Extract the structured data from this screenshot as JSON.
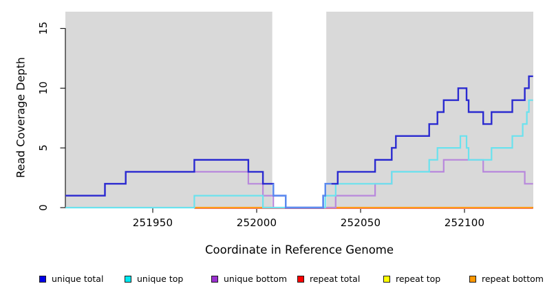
{
  "chart_data": {
    "type": "line",
    "subtype": "step-coverage-plot",
    "title": "",
    "x_axis": {
      "label": "Coordinate in Reference Genome",
      "ticks": [
        251950,
        252000,
        252050,
        252100
      ],
      "tick_labels": [
        "251950",
        "252000",
        "252050",
        "252100"
      ],
      "range": [
        251908,
        252133
      ],
      "grid": false
    },
    "y_axis": {
      "label": "Read Coverage Depth",
      "ticks": [
        0,
        5,
        10,
        15
      ],
      "tick_labels": [
        "0",
        "5",
        "10",
        "15"
      ],
      "range": [
        0,
        16.4
      ],
      "grid": false
    },
    "plot_background": "#d9d9d9",
    "page_background": "#ffffff",
    "gap_region": {
      "from": 252007.5,
      "to": 252033.5,
      "color": "#ffffff"
    },
    "series": [
      {
        "name": "unique total",
        "color": "#0000e8",
        "points": [
          [
            251908,
            1
          ],
          [
            251927,
            2
          ],
          [
            251937,
            3
          ],
          [
            251970,
            4
          ],
          [
            251996,
            3
          ],
          [
            252003,
            2
          ],
          [
            252008,
            1
          ],
          [
            252014,
            0
          ],
          [
            252032,
            1
          ],
          [
            252033,
            2
          ],
          [
            252039,
            3
          ],
          [
            252057,
            4
          ],
          [
            252065,
            5
          ],
          [
            252067,
            6
          ],
          [
            252083,
            7
          ],
          [
            252087,
            8
          ],
          [
            252090,
            9
          ],
          [
            252097,
            10
          ],
          [
            252101,
            9
          ],
          [
            252102,
            8
          ],
          [
            252109,
            7
          ],
          [
            252113,
            8
          ],
          [
            252123,
            9
          ],
          [
            252129,
            10
          ],
          [
            252131,
            11
          ]
        ],
        "end": 252133
      },
      {
        "name": "unique top",
        "color": "#00e8f0",
        "points": [
          [
            251908,
            0
          ],
          [
            251970,
            1
          ],
          [
            252003,
            0
          ],
          [
            252033,
            1
          ],
          [
            252038,
            2
          ],
          [
            252065,
            3
          ],
          [
            252083,
            4
          ],
          [
            252087,
            5
          ],
          [
            252098,
            6
          ],
          [
            252101,
            5
          ],
          [
            252102,
            4
          ],
          [
            252113,
            5
          ],
          [
            252123,
            6
          ],
          [
            252128,
            7
          ],
          [
            252130,
            8
          ],
          [
            252131,
            9
          ]
        ],
        "end": 252133
      },
      {
        "name": "unique bottom",
        "color": "#9a30cf",
        "points": [
          [
            251908,
            1
          ],
          [
            251927,
            2
          ],
          [
            251937,
            3
          ],
          [
            251996,
            2
          ],
          [
            252003,
            1
          ],
          [
            252008,
            0
          ],
          [
            252038,
            1
          ],
          [
            252057,
            2
          ],
          [
            252065,
            3
          ],
          [
            252090,
            4
          ],
          [
            252109,
            3
          ],
          [
            252129,
            2
          ]
        ],
        "end": 252133
      },
      {
        "name": "repeat total",
        "color": "#ff0000",
        "points": [
          [
            251908,
            0
          ]
        ],
        "end": 252133
      },
      {
        "name": "repeat top",
        "color": "#ffff00",
        "points": [
          [
            251908,
            0
          ]
        ],
        "end": 252133
      },
      {
        "name": "repeat bottom",
        "color": "#ff9800",
        "points": [
          [
            251908,
            0
          ]
        ],
        "end": 252133
      }
    ],
    "visual": {
      "lines": [
        {
          "name": "repeat-total-line",
          "color": "#ee7078",
          "width": 2,
          "yoff": 1,
          "points": [
            [
              251970,
              0
            ]
          ],
          "end": 252133
        },
        {
          "name": "baseline-overlap-line",
          "color": "#92d692",
          "width": 2,
          "points": [
            [
              251908,
              0
            ]
          ],
          "end": 251971,
          "note": "overlapping zero-depth lines appear pale green"
        },
        {
          "name": "repeat-bottom-line-left",
          "color": "#ff9b15",
          "width": 2.2,
          "points": [
            [
              251970,
              0
            ]
          ],
          "end": 252007.5
        },
        {
          "name": "repeat-bottom-line-right",
          "color": "#ff9b15",
          "width": 2.2,
          "points": [
            [
              252033.5,
              0
            ]
          ],
          "end": 252133
        },
        {
          "name": "unique-bottom-line",
          "color": "#b888dc",
          "width": 2.2,
          "series": 2
        },
        {
          "name": "unique-top-line",
          "color": "#6ae2ee",
          "width": 2.2,
          "series": 1
        },
        {
          "name": "unique-total-line",
          "color": "#2a2ad0",
          "width": 2.4,
          "series": 0
        },
        {
          "name": "unique-total-gap-segment",
          "color": "#5b8cf0",
          "width": 2.4,
          "points": [
            [
              252008,
              2
            ],
            [
              252008,
              1
            ],
            [
              252014,
              0
            ],
            [
              252032,
              1
            ],
            [
              252033,
              2
            ]
          ],
          "end": 252036
        }
      ]
    }
  },
  "legend": {
    "items": [
      {
        "label": "unique total",
        "color": "#0000e8"
      },
      {
        "label": "unique top",
        "color": "#00e8f0"
      },
      {
        "label": "unique bottom",
        "color": "#9a30cf"
      },
      {
        "label": "repeat total",
        "color": "#ff0000"
      },
      {
        "label": "repeat top",
        "color": "#ffff00"
      },
      {
        "label": "repeat bottom",
        "color": "#ff9800"
      }
    ]
  }
}
